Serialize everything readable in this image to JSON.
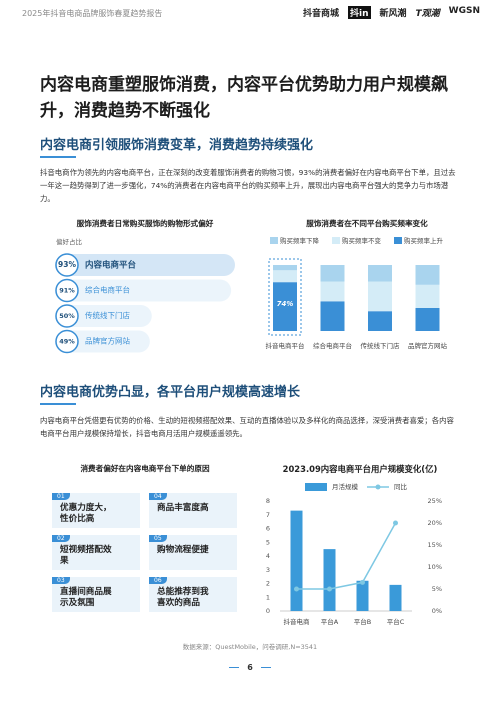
{
  "header": {
    "report_title": "2025年抖音电商品牌服饰春夏趋势报告",
    "logos": [
      "抖音商城",
      "抖in",
      "新风潮",
      "T观潮",
      "WGSN"
    ]
  },
  "title": "内容电商重塑服饰消费，内容平台优势助力用户规模飙升，消费趋势不断强化",
  "sections": [
    {
      "heading": "内容电商引领服饰消费变革，消费趋势持续强化",
      "paragraph": "抖音电商作为领先的内容电商平台，正在深刻的改变着服饰消费者的购物习惯，93%的消费者偏好在内容电商平台下单，且过去一年这一趋势得到了进一步强化，74%的消费者在内容电商平台的购买频率上升，展现出内容电商平台强大的竞争力与市场潜力。"
    },
    {
      "heading": "内容电商优势凸显，各平台用户规模高速增长",
      "paragraph": "内容电商平台凭借更有优势的价格、生动的短视频搭配效果、互动的直播体验以及多样化的商品选择，深受消费者喜爱；各内容电商平台用户规模保持增长，抖音电商月活用户规模遥遥领先。"
    }
  ],
  "reasons": {
    "title": "消费者偏好在内容电商平台下单的原因",
    "items": [
      {
        "num": "01",
        "text": "优惠力度大，性价比高"
      },
      {
        "num": "02",
        "text": "短视频搭配效果"
      },
      {
        "num": "03",
        "text": "直播间商品展示及氛围"
      },
      {
        "num": "04",
        "text": "商品丰富度高"
      },
      {
        "num": "05",
        "text": "购物流程便捷"
      },
      {
        "num": "06",
        "text": "总能推荐到我喜欢的商品"
      }
    ]
  },
  "chart_data": [
    {
      "type": "pill",
      "title": "服饰消费者日常购买服饰的购物形式偏好",
      "legend_title": "偏好占比",
      "categories": [
        "内容电商平台",
        "综合电商平台",
        "传统线下门店",
        "品牌官方网站"
      ],
      "values": [
        93,
        91,
        50,
        49
      ],
      "value_labels": [
        "93%",
        "91%",
        "50%",
        "49%"
      ],
      "color": "#3a8fd6"
    },
    {
      "type": "stacked_bar",
      "title": "服饰消费者在不同平台购买频率变化",
      "categories": [
        "抖音电商平台",
        "综合电商平台",
        "传统线下门店",
        "品牌官方网站"
      ],
      "series": [
        {
          "name": "购买频率上升",
          "color": "#3a8fd6",
          "values": [
            74,
            45,
            30,
            35
          ],
          "value_labels": [
            "74%",
            null,
            null,
            null
          ]
        },
        {
          "name": "购买频率不变",
          "color": "#d4ecf7",
          "values": [
            18,
            30,
            45,
            35
          ]
        },
        {
          "name": "购买频率下降",
          "color": "#a9d4ee",
          "values": [
            8,
            25,
            25,
            30
          ]
        }
      ],
      "legend_order": [
        2,
        1,
        0
      ]
    },
    {
      "type": "bar_line",
      "title": "2023.09内容电商平台用户规模变化(亿)",
      "categories": [
        "抖音电商",
        "平台A",
        "平台B",
        "平台C"
      ],
      "series": [
        {
          "name": "月活规模",
          "color": "#3a9ad9",
          "values": [
            7.3,
            4.5,
            2.2,
            1.9
          ]
        },
        {
          "name": "同比",
          "color": "#7ec8e3",
          "axis": "y2",
          "values": [
            5,
            5,
            6.5,
            20
          ]
        }
      ],
      "ylim": [
        0,
        8
      ],
      "yticks": [
        0,
        1,
        2,
        3,
        4,
        5,
        6,
        7,
        8
      ],
      "y2lim": [
        0,
        25
      ],
      "y2ticks": [
        {
          "value": 0,
          "label": "0%"
        },
        {
          "value": 5,
          "label": "5%"
        },
        {
          "value": 10,
          "label": "10%"
        },
        {
          "value": 15,
          "label": "15%"
        },
        {
          "value": 20,
          "label": "20%"
        },
        {
          "value": 25,
          "label": "25%"
        }
      ],
      "grid": false
    }
  ],
  "source": "数据来源：QuestMobile，问卷调研,N=3541",
  "page_number": "6"
}
